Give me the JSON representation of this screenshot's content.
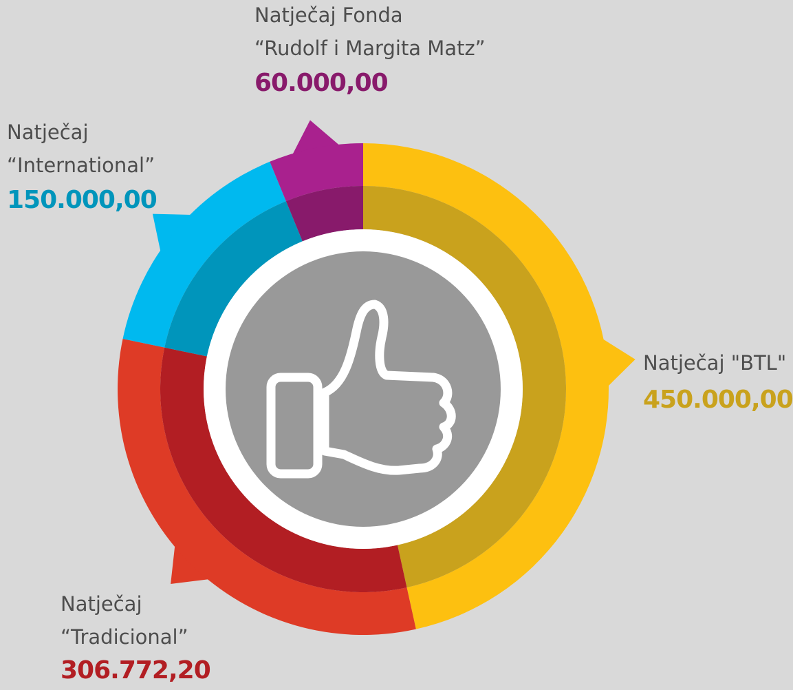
{
  "chart_data": {
    "type": "donut",
    "categories": [
      [
        "Natječaj  \"BTL\""
      ],
      [
        "Natječaj",
        "“Tradicional”"
      ],
      [
        "Natječaj",
        "“International”"
      ],
      [
        "Natječaj Fonda",
        "“Rudolf i Margita Matz”"
      ]
    ],
    "values": [
      450000,
      306772.2,
      150000,
      60000
    ],
    "value_labels": [
      "450.000,00",
      "306.772,20",
      "150.000,00",
      "60.000,00"
    ],
    "colors": [
      "#fdc010",
      "#de3b26",
      "#00b9ef",
      "#a9218e"
    ],
    "dark_colors": [
      "#c9a21d",
      "#b21e23",
      "#0095bb",
      "#881a6b"
    ]
  }
}
